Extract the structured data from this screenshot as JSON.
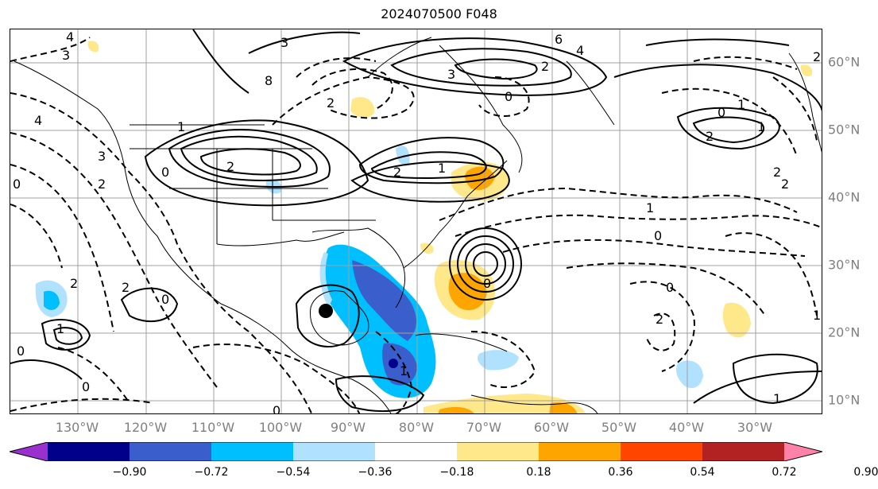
{
  "title": "2024070500 F048",
  "longitude_labels": [
    "130°W",
    "120°W",
    "110°W",
    "100°W",
    "90°W",
    "80°W",
    "70°W",
    "60°W",
    "50°W",
    "40°W",
    "30°W"
  ],
  "latitude_labels": [
    "60°N",
    "50°N",
    "40°N",
    "30°N",
    "20°N",
    "10°N"
  ],
  "colorbar": {
    "ticks": [
      "−0.90",
      "−0.72",
      "−0.54",
      "−0.36",
      "−0.18",
      "0.18",
      "0.36",
      "0.54",
      "0.72",
      "0.90"
    ],
    "colors": [
      "#9b30d0",
      "#00008b",
      "#3a5fcd",
      "#00bfff",
      "#b0e2ff",
      "#ffffff",
      "#ffe88a",
      "#ffa500",
      "#ff4500",
      "#b22222",
      "#ff82ab"
    ]
  },
  "contour_labels": [
    "4",
    "3",
    "3",
    "8",
    "6",
    "4",
    "2",
    "3",
    "0",
    "2",
    "0",
    "1",
    "2",
    "2",
    "1",
    "0",
    "2",
    "4",
    "3",
    "0",
    "2",
    "2",
    "1",
    "0",
    "2",
    "2",
    "1",
    "0",
    "2",
    "1",
    "0",
    "2",
    "1",
    "2",
    "1",
    "0",
    "0",
    "0",
    "0",
    "1",
    "1"
  ],
  "fill_colors": {
    "blue_light": "#b0e2ff",
    "blue_mid": "#00bfff",
    "blue_dark": "#3a5fcd",
    "navy": "#00008b",
    "yellow": "#ffe88a",
    "orange": "#ffa500",
    "red": "#ff4500"
  }
}
